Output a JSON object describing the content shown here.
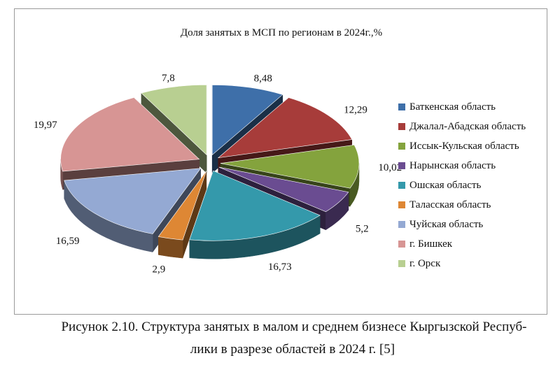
{
  "chart_data": {
    "type": "pie",
    "title": "Доля занятых в МСП по регионам в 2024г.,%",
    "series": [
      {
        "name": "Баткенская область",
        "value": 8.48,
        "label": "8,48",
        "color": "#3e6fa9"
      },
      {
        "name": "Джалал-Абадская область",
        "value": 12.29,
        "label": "12,29",
        "color": "#a73c3a"
      },
      {
        "name": "Иссык-Кульская область",
        "value": 10.02,
        "label": "10,02",
        "color": "#84a33d"
      },
      {
        "name": "Нарынская область",
        "value": 5.2,
        "label": "5,2",
        "color": "#6a4c91"
      },
      {
        "name": "Ошская область",
        "value": 16.73,
        "label": "16,73",
        "color": "#3499ab"
      },
      {
        "name": "Таласская область",
        "value": 2.9,
        "label": "2,9",
        "color": "#de8734"
      },
      {
        "name": "Чуйская область",
        "value": 16.59,
        "label": "16,59",
        "color": "#94a9d3"
      },
      {
        "name": "г. Бишкек",
        "value": 19.97,
        "label": "19,97",
        "color": "#d79594"
      },
      {
        "name": "г. Орск",
        "value": 7.8,
        "label": "7,8",
        "color": "#b8cf91"
      }
    ],
    "legend_position": "right",
    "exploded": true,
    "style": "3d"
  },
  "caption": {
    "line1": "Рисунок 2.10. Структура занятых в малом и среднем бизнесе Кыргызской Респуб-",
    "line2": "лики в разрезе областей в 2024 г. [5]"
  }
}
